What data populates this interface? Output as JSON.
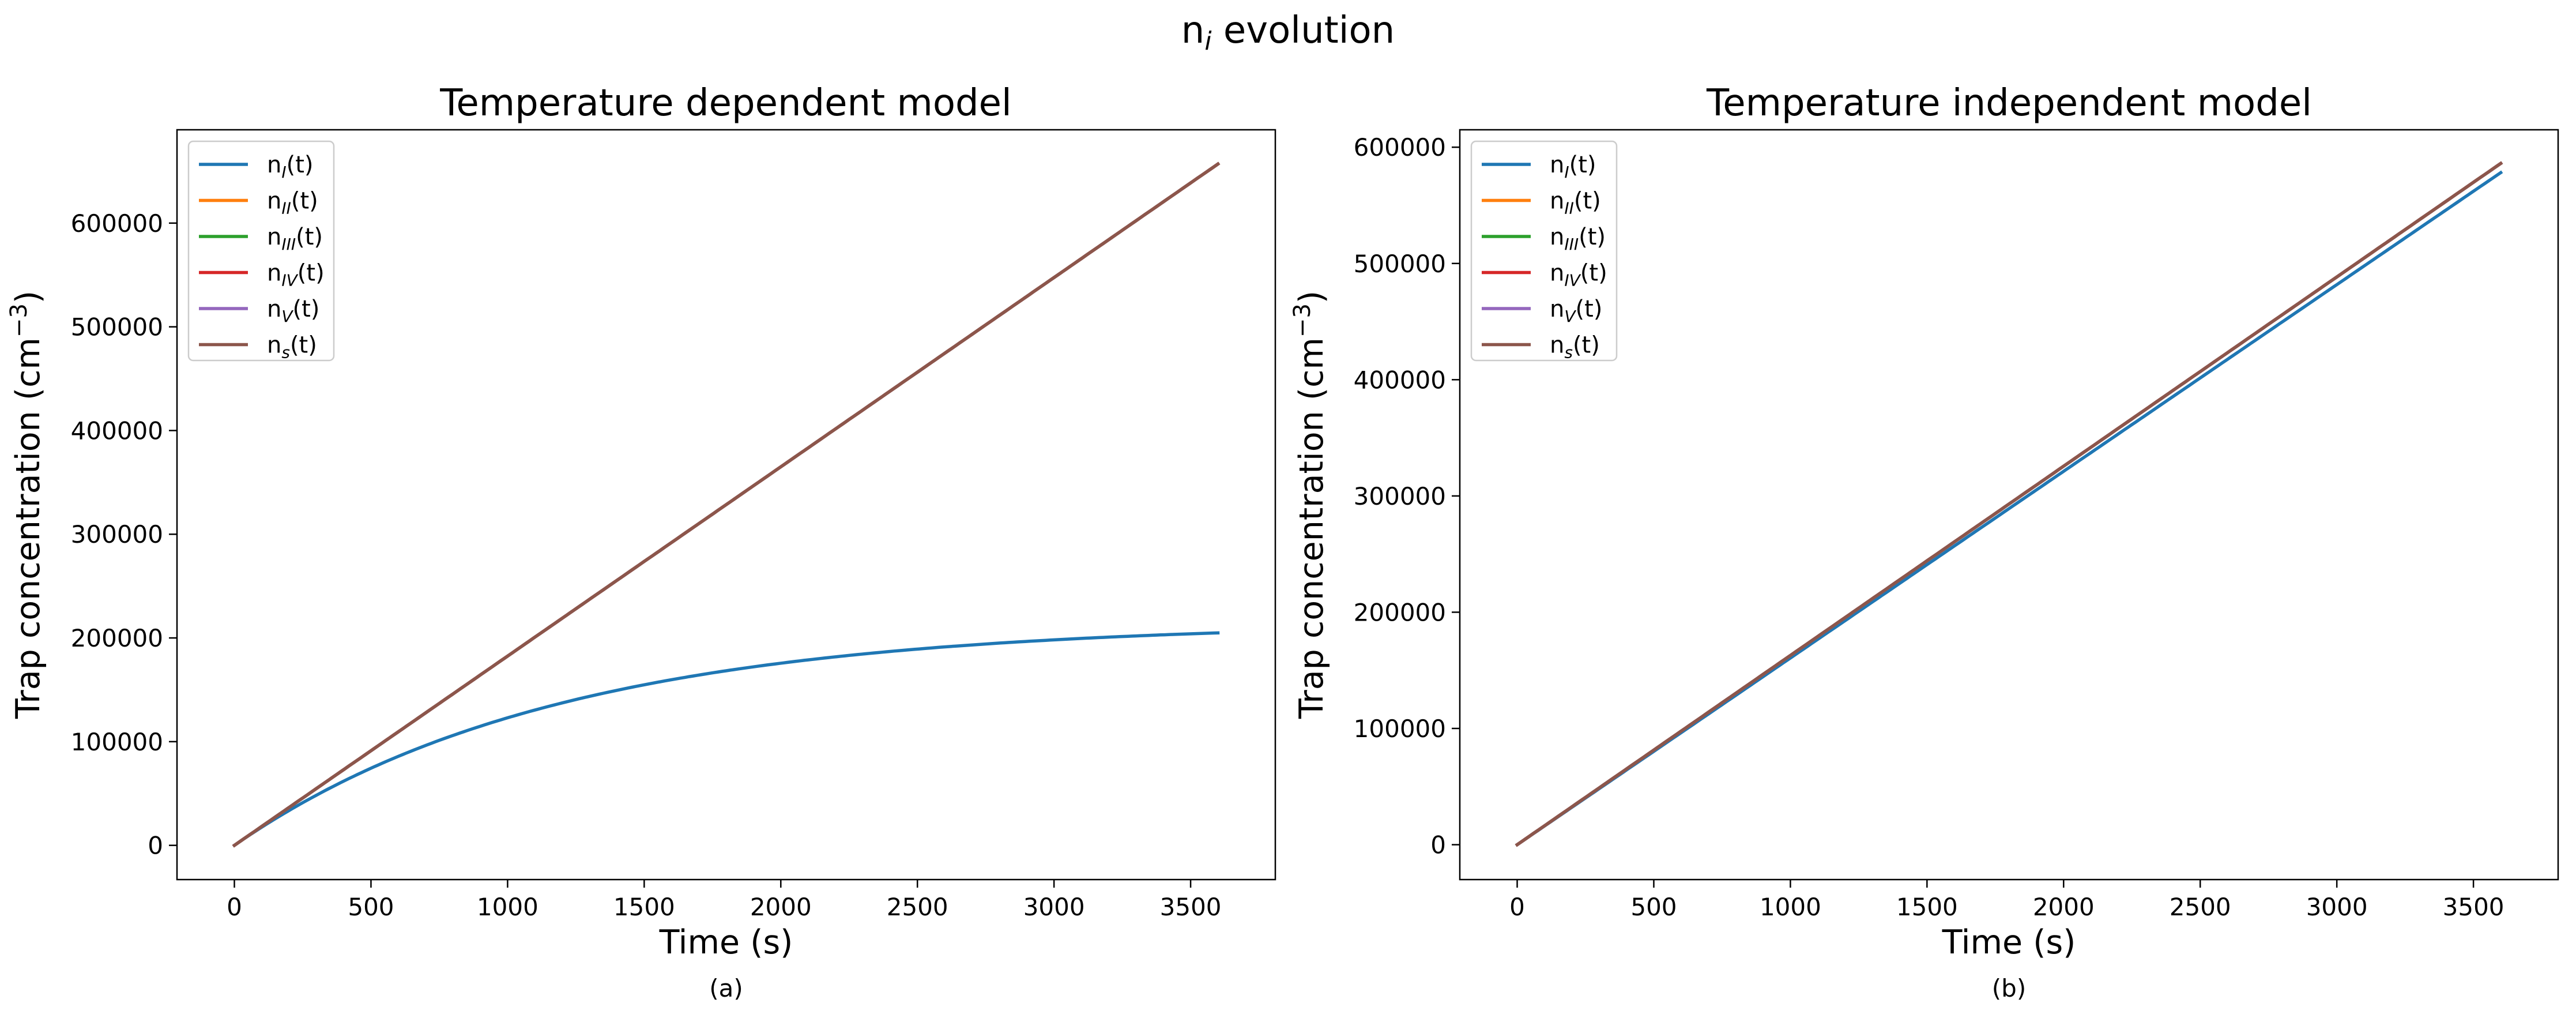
{
  "figure": {
    "suptitle": "n",
    "suptitle_sub": "i",
    "suptitle_rest": " evolution"
  },
  "colors": {
    "n_I": "#1f77b4",
    "n_II": "#ff7f0e",
    "n_III": "#2ca02c",
    "n_IV": "#d62728",
    "n_V": "#9467bd",
    "n_s": "#8c564b"
  },
  "chart_data": [
    {
      "type": "line",
      "title": "Temperature dependent model",
      "xlabel": "Time (s)",
      "ylabel_main": "Trap concentration (cm",
      "ylabel_sup": "−3",
      "ylabel_end": ")",
      "caption": "(a)",
      "xlim": [
        -210,
        3810
      ],
      "ylim": [
        -33000,
        690000
      ],
      "xticks": [
        0,
        500,
        1000,
        1500,
        2000,
        2500,
        3000,
        3500
      ],
      "yticks": [
        0,
        100000,
        200000,
        300000,
        400000,
        500000,
        600000
      ],
      "legend_position": "upper left",
      "grid": false,
      "series": [
        {
          "key": "n_I",
          "name_base": "n",
          "name_sub": "I",
          "name_end": "(t)",
          "func": "sat",
          "rate": 182.5,
          "cap": 215000
        },
        {
          "key": "n_II",
          "name_base": "n",
          "name_sub": "II",
          "name_end": "(t)",
          "func": "lin",
          "rate": 182.5
        },
        {
          "key": "n_III",
          "name_base": "n",
          "name_sub": "III",
          "name_end": "(t)",
          "func": "lin",
          "rate": 182.5
        },
        {
          "key": "n_IV",
          "name_base": "n",
          "name_sub": "IV",
          "name_end": "(t)",
          "func": "lin",
          "rate": 182.5
        },
        {
          "key": "n_V",
          "name_base": "n",
          "name_sub": "V",
          "name_end": "(t)",
          "func": "lin",
          "rate": 182.5
        },
        {
          "key": "n_s",
          "name_base": "n",
          "name_sub": "s",
          "name_end": "(t)",
          "func": "lin",
          "rate": 182.5
        }
      ],
      "x_end": 3600
    },
    {
      "type": "line",
      "title": "Temperature independent model",
      "xlabel": "Time (s)",
      "ylabel_main": "Trap concentration (cm",
      "ylabel_sup": "−3",
      "ylabel_end": ")",
      "caption": "(b)",
      "xlim": [
        -210,
        3810
      ],
      "ylim": [
        -30000,
        615000
      ],
      "xticks": [
        0,
        500,
        1000,
        1500,
        2000,
        2500,
        3000,
        3500
      ],
      "yticks": [
        0,
        100000,
        200000,
        300000,
        400000,
        500000,
        600000
      ],
      "legend_position": "upper left",
      "grid": false,
      "series": [
        {
          "key": "n_I",
          "name_base": "n",
          "name_sub": "I",
          "name_end": "(t)",
          "func": "lin",
          "rate": 160.6
        },
        {
          "key": "n_II",
          "name_base": "n",
          "name_sub": "II",
          "name_end": "(t)",
          "func": "lin",
          "rate": 162.8
        },
        {
          "key": "n_III",
          "name_base": "n",
          "name_sub": "III",
          "name_end": "(t)",
          "func": "lin",
          "rate": 162.8
        },
        {
          "key": "n_IV",
          "name_base": "n",
          "name_sub": "IV",
          "name_end": "(t)",
          "func": "lin",
          "rate": 162.8
        },
        {
          "key": "n_V",
          "name_base": "n",
          "name_sub": "V",
          "name_end": "(t)",
          "func": "lin",
          "rate": 162.8
        },
        {
          "key": "n_s",
          "name_base": "n",
          "name_sub": "s",
          "name_end": "(t)",
          "func": "lin",
          "rate": 162.8
        }
      ],
      "x_end": 3600
    }
  ]
}
